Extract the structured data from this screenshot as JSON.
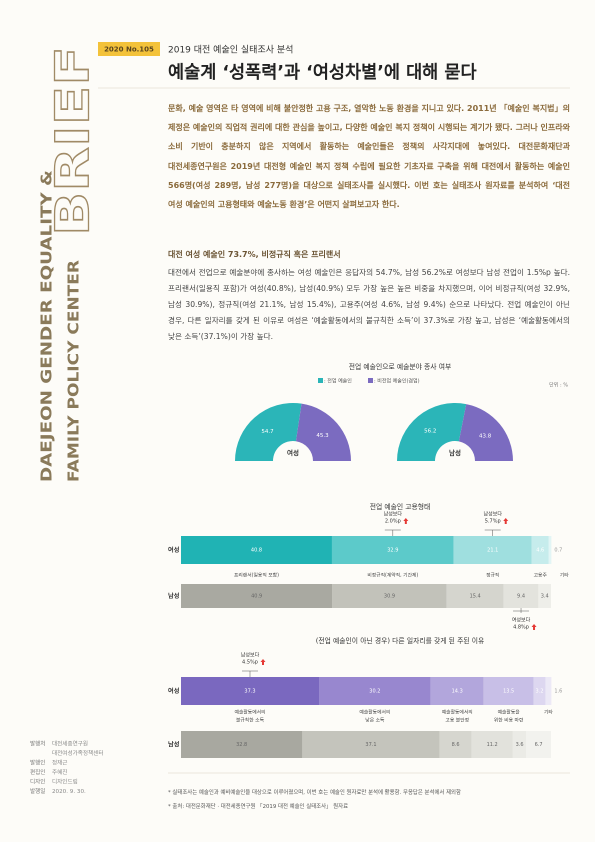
{
  "sidebar": {
    "brief": "BRIEF",
    "brand_line1": "DAEJEON GENDER EQUALITY &",
    "brand_line2": "FAMILY POLICY CENTER",
    "colophon": [
      {
        "key": "발행처",
        "values": [
          "대전세종연구원",
          "대전여성가족정책센터"
        ]
      },
      {
        "key": "발행인",
        "values": [
          "정재근"
        ]
      },
      {
        "key": "편집인",
        "values": [
          "주혜진"
        ]
      },
      {
        "key": "디자인",
        "values": [
          "디자인드림"
        ]
      },
      {
        "key": "발행일",
        "values": [
          "2020. 9. 30."
        ]
      }
    ]
  },
  "header": {
    "issue": "2020 No.105",
    "subtitle": "2019 대전 예술인 실태조사 분석",
    "title": "예술계 ‘성폭력’과 ‘여성차별’에 대해 묻다"
  },
  "intro": "문화, 예술 영역은 타 영역에 비해 불안정한 고용 구조, 열악한 노동 환경을 지니고 있다. 2011년 「예술인 복지법」의 제정은 예술인의 직업적 권리에 대한 관심을 높이고, 다양한 예술인 복지 정책이 시행되는 계기가 됐다. 그러나 인프라와 소비 기반이 충분하지 않은 지역에서 활동하는 예술인들은 정책의 사각지대에 놓여있다. 대전문화재단과 대전세종연구원은 2019년 대전형 예술인 복지 정책 수립에 필요한 기초자료 구축을 위해 대전에서 활동하는 예술인 566명(여성 289명, 남성 277명)을 대상으로 실태조사를 실시했다. 이번 호는 실태조사 원자료를 분석하여 ‘대전 여성 예술인의 고용형태와 예술노동 환경’은 어떤지 살펴보고자 한다.",
  "section": {
    "heading": "대전 여성 예술인 73.7%, 비정규직 혹은 프리랜서",
    "body": "대전에서 전업으로 예술분야에 종사하는 여성 예술인은 응답자의 54.7%, 남성 56.2%로 여성보다 남성 전업이 1.5%p 높다. 프리랜서(일용직 포함)가 여성(40.8%), 남성(40.9%) 모두 가장 높은 높은 비중을 차지했으며, 이어 비정규직(여성 32.9%, 남성 30.9%), 정규직(여성 21.1%, 남성 15.4%), 고용주(여성 4.6%, 남성 9.4%) 순으로 나타났다. 전업 예술인이 아닌 경우, 다른 일자리를 갖게 된 이유로 여성은 ‘예술활동에서의 불규칙한 소득’이 37.3%로 가장 높고, 남성은 ‘예술활동에서의 낮은 소득’(37.1%)이 가장 높다."
  },
  "charts": [
    {
      "type": "half-donut",
      "title": "전업 예술인으로 예술분야 종사 여부",
      "legend": [
        ": 전업 예술인",
        ": 비전업 예술인(겸업)"
      ],
      "colors": [
        "#2bb5b8",
        "#7b6bc0"
      ],
      "unit": "단위 : %",
      "groups": [
        {
          "name": "여성",
          "values": [
            54.7,
            45.3
          ]
        },
        {
          "name": "남성",
          "values": [
            56.2,
            43.8
          ]
        }
      ]
    },
    {
      "type": "stacked-bar",
      "title": "전업 예술인 고용형태",
      "categories": [
        [
          "프리랜서(일용직 포함)"
        ],
        [
          "비정규직(계약직, 기간제)"
        ],
        [
          "정규직"
        ],
        [
          "고용주"
        ],
        [
          "기타"
        ]
      ],
      "series": [
        {
          "name": "여성",
          "values": [
            40.8,
            32.9,
            21.1,
            4.6,
            0.7
          ],
          "colors": [
            "#20b3b4",
            "#5ccaca",
            "#9fdfdf",
            "#c6ecec",
            "#e2f5f5"
          ]
        },
        {
          "name": "남성",
          "values": [
            40.9,
            30.9,
            15.4,
            9.4,
            3.4
          ],
          "colors": [
            "#a9a9a1",
            "#c2c2ba",
            "#d5d5ce",
            "#e3e3dd",
            "#eeeee9"
          ]
        }
      ],
      "annotations": [
        {
          "series": 0,
          "index": 1,
          "lines": [
            "남성보다",
            "2.0%p"
          ]
        },
        {
          "series": 0,
          "index": 2,
          "lines": [
            "남성보다",
            "5.7%p"
          ]
        },
        {
          "series": 1,
          "index": 3,
          "lines": [
            "여성보다",
            "4.8%p"
          ]
        }
      ]
    },
    {
      "type": "stacked-bar",
      "title": "(전업 예술인이 아닌 경우) 다른 일자리를 갖게 된 주된 이유",
      "categories": [
        [
          "예술활동에서의",
          "불규칙한 소득"
        ],
        [
          "예술활동에서의",
          "낮은 소득"
        ],
        [
          "예술활동에서의",
          "고용 불안정"
        ],
        [
          "예술활동을",
          "위한 비용 마련"
        ],
        null,
        [
          "기타"
        ]
      ],
      "series": [
        {
          "name": "여성",
          "values": [
            37.3,
            30.2,
            14.3,
            13.5,
            3.2,
            1.6
          ],
          "colors": [
            "#7a68bf",
            "#9887cf",
            "#b2a6dc",
            "#c8bfe7",
            "#ddd7f0",
            "#ece9f6"
          ]
        },
        {
          "name": "남성",
          "values": [
            32.8,
            37.1,
            8.6,
            11.2,
            3.6,
            6.7
          ],
          "colors": [
            "#a8a8a0",
            "#c4c4bc",
            "#d6d6cf",
            "#e2e2dc",
            "#ebebe6",
            "#f2f2ee"
          ]
        }
      ],
      "annotations": [
        {
          "series": 0,
          "index": 0,
          "lines": [
            "남성보다",
            "4.5%p"
          ]
        }
      ]
    }
  ],
  "footnotes": [
    "* 실태조사는 예술인과 예비예술인을 대상으로 이루어졌으며, 이번 호는 예술인 원자료만 분석에 활용함. 무응답은 분석에서 제외함",
    "* 출처: 대전문화재단 · 대전세종연구원 「2019 대전 예술인 실태조사」 원자료"
  ]
}
